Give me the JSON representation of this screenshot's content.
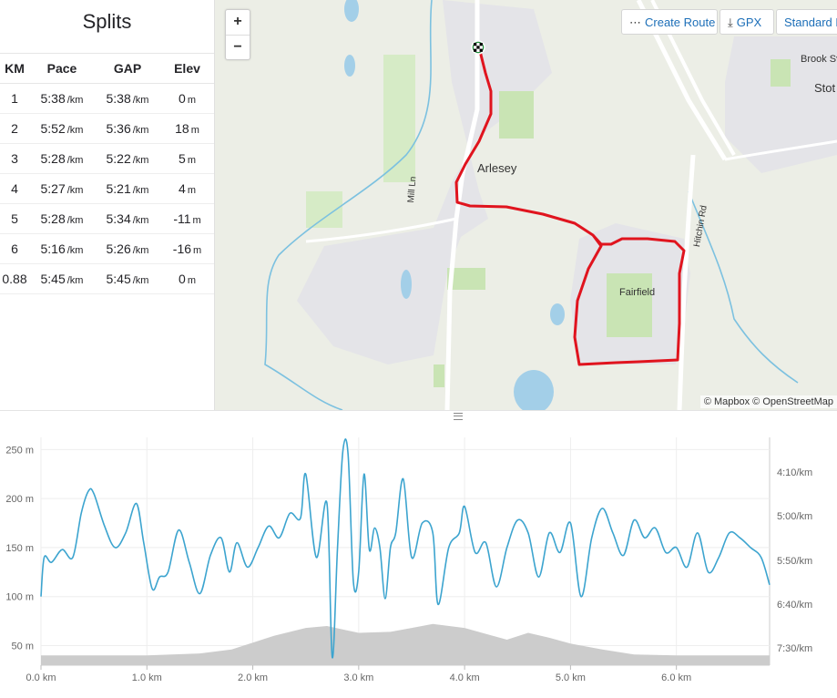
{
  "splits": {
    "title": "Splits",
    "columns": [
      "KM",
      "Pace",
      "GAP",
      "Elev"
    ],
    "rows": [
      {
        "km": "1",
        "pace": "5:38",
        "gap": "5:38",
        "elev": "0"
      },
      {
        "km": "2",
        "pace": "5:52",
        "gap": "5:36",
        "elev": "18"
      },
      {
        "km": "3",
        "pace": "5:28",
        "gap": "5:22",
        "elev": "5"
      },
      {
        "km": "4",
        "pace": "5:27",
        "gap": "5:21",
        "elev": "4"
      },
      {
        "km": "5",
        "pace": "5:28",
        "gap": "5:34",
        "elev": "-11"
      },
      {
        "km": "6",
        "pace": "5:16",
        "gap": "5:26",
        "elev": "-16"
      },
      {
        "km": "0.88",
        "pace": "5:45",
        "gap": "5:45",
        "elev": "0"
      }
    ],
    "pace_unit": "/km",
    "elev_unit": "m"
  },
  "map": {
    "zoom_in": "+",
    "zoom_out": "−",
    "create_route_label": "Create Route",
    "gpx_label": "GPX",
    "standard_label": "Standard M",
    "labels": {
      "arlesey": "Arlesey",
      "fairfield": "Fairfield",
      "mill_ln": "Mill Ln",
      "hitchin_rd": "Hitchin Rd",
      "brook": "Brook Sv",
      "stot": "Stot"
    },
    "attribution": "© Mapbox © OpenStreetMap",
    "route_color": "#e0141e",
    "water_color": "#a3cfe8",
    "park_color": "#c9e4b4"
  },
  "chart_data": {
    "type": "line",
    "x_axis": {
      "ticks": [
        "0.0 km",
        "1.0 km",
        "2.0 km",
        "3.0 km",
        "4.0 km",
        "5.0 km",
        "6.0 km"
      ],
      "range": [
        0,
        6.88
      ]
    },
    "y_left": {
      "ticks": [
        "50 m",
        "100 m",
        "150 m",
        "200 m",
        "250 m"
      ],
      "range": [
        30,
        255
      ]
    },
    "y_right": {
      "ticks": [
        "4:10/km",
        "5:00/km",
        "5:50/km",
        "6:40/km",
        "7:30/km"
      ]
    },
    "series": [
      {
        "kind": "area",
        "color": "#cccccc",
        "x": [
          0,
          0.5,
          1.0,
          1.5,
          1.8,
          2.0,
          2.2,
          2.5,
          2.7,
          3.0,
          3.3,
          3.5,
          3.7,
          4.0,
          4.2,
          4.4,
          4.6,
          4.8,
          5.0,
          5.3,
          5.6,
          6.0,
          6.5,
          6.88
        ],
        "y": [
          40,
          40,
          40,
          42,
          46,
          53,
          60,
          68,
          70,
          63,
          64,
          68,
          72,
          68,
          62,
          56,
          63,
          58,
          52,
          46,
          41,
          40,
          40,
          40
        ]
      },
      {
        "kind": "line",
        "color": "#3ca4cf",
        "x": [
          0,
          0.03,
          0.1,
          0.2,
          0.3,
          0.38,
          0.45,
          0.5,
          0.6,
          0.7,
          0.8,
          0.9,
          0.97,
          1.05,
          1.12,
          1.2,
          1.3,
          1.4,
          1.5,
          1.6,
          1.7,
          1.78,
          1.85,
          1.95,
          2.05,
          2.15,
          2.25,
          2.35,
          2.45,
          2.5,
          2.6,
          2.7,
          2.75,
          2.8,
          2.85,
          2.9,
          2.95,
          3.0,
          3.05,
          3.1,
          3.15,
          3.2,
          3.25,
          3.3,
          3.35,
          3.42,
          3.5,
          3.6,
          3.7,
          3.75,
          3.85,
          3.95,
          4.0,
          4.1,
          4.2,
          4.3,
          4.4,
          4.5,
          4.6,
          4.7,
          4.8,
          4.9,
          5.0,
          5.1,
          5.2,
          5.3,
          5.4,
          5.5,
          5.6,
          5.7,
          5.8,
          5.9,
          6.0,
          6.1,
          6.2,
          6.3,
          6.4,
          6.5,
          6.6,
          6.7,
          6.8,
          6.88
        ],
        "y": [
          100,
          140,
          135,
          148,
          140,
          185,
          208,
          205,
          172,
          150,
          165,
          195,
          155,
          108,
          120,
          125,
          168,
          135,
          103,
          142,
          160,
          125,
          155,
          130,
          150,
          172,
          160,
          185,
          180,
          225,
          140,
          195,
          38,
          150,
          248,
          245,
          115,
          125,
          225,
          148,
          170,
          150,
          98,
          150,
          165,
          220,
          140,
          175,
          165,
          92,
          150,
          165,
          192,
          145,
          155,
          110,
          150,
          178,
          165,
          120,
          165,
          145,
          175,
          100,
          160,
          190,
          165,
          142,
          178,
          160,
          170,
          145,
          150,
          130,
          165,
          125,
          140,
          165,
          160,
          150,
          140,
          112
        ]
      }
    ]
  }
}
